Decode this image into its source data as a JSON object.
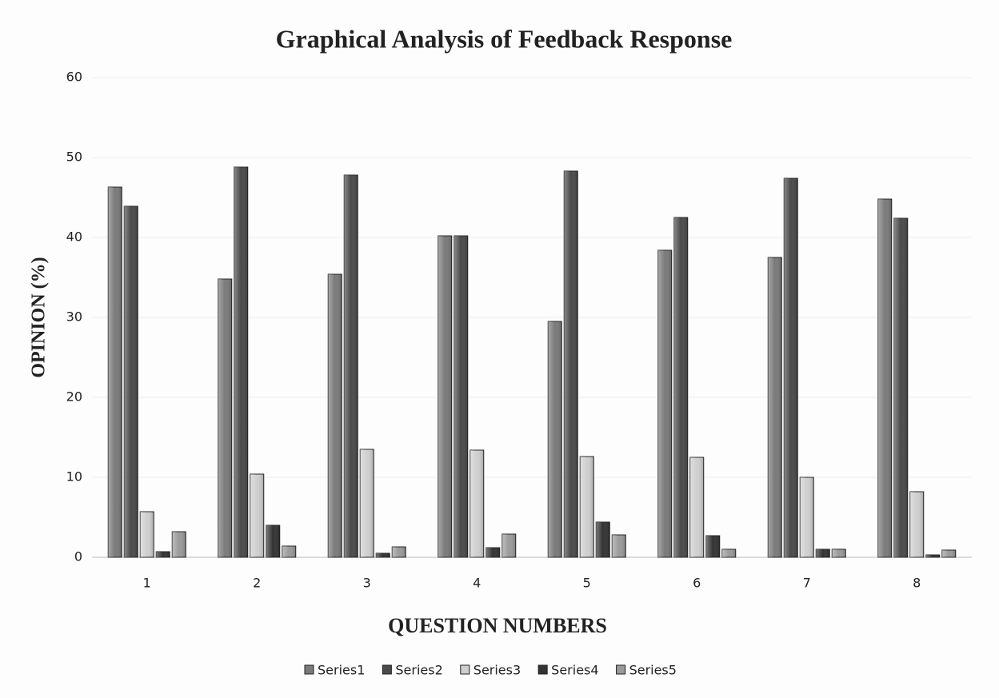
{
  "chart_data": {
    "type": "bar",
    "title": "Graphical Analysis of Feedback Response",
    "x_label": "QUESTION NUMBERS",
    "y_label": "OPINION (%)",
    "categories": [
      "1",
      "2",
      "3",
      "4",
      "5",
      "6",
      "7",
      "8"
    ],
    "series": [
      {
        "name": "Series1",
        "color": "#7a7a7a",
        "values": [
          46.3,
          34.8,
          35.4,
          40.2,
          29.5,
          38.4,
          37.5,
          44.8
        ]
      },
      {
        "name": "Series2",
        "color": "#4a4a4a",
        "values": [
          43.9,
          48.8,
          47.8,
          40.2,
          48.3,
          42.5,
          47.4,
          42.4
        ]
      },
      {
        "name": "Series3",
        "color": "#cfcfcf",
        "values": [
          5.7,
          10.4,
          13.5,
          13.4,
          12.6,
          12.5,
          10.0,
          8.2
        ]
      },
      {
        "name": "Series4",
        "color": "#333333",
        "values": [
          0.7,
          4.0,
          0.5,
          1.2,
          4.4,
          2.7,
          1.0,
          0.3
        ]
      },
      {
        "name": "Series5",
        "color": "#9a9a9a",
        "values": [
          3.2,
          1.4,
          1.3,
          2.9,
          2.8,
          1.0,
          1.0,
          0.9
        ]
      }
    ],
    "ylim": [
      0,
      60
    ],
    "yticks": [
      0,
      10,
      20,
      30,
      40,
      50,
      60
    ],
    "grid": true,
    "legend": "bottom"
  }
}
